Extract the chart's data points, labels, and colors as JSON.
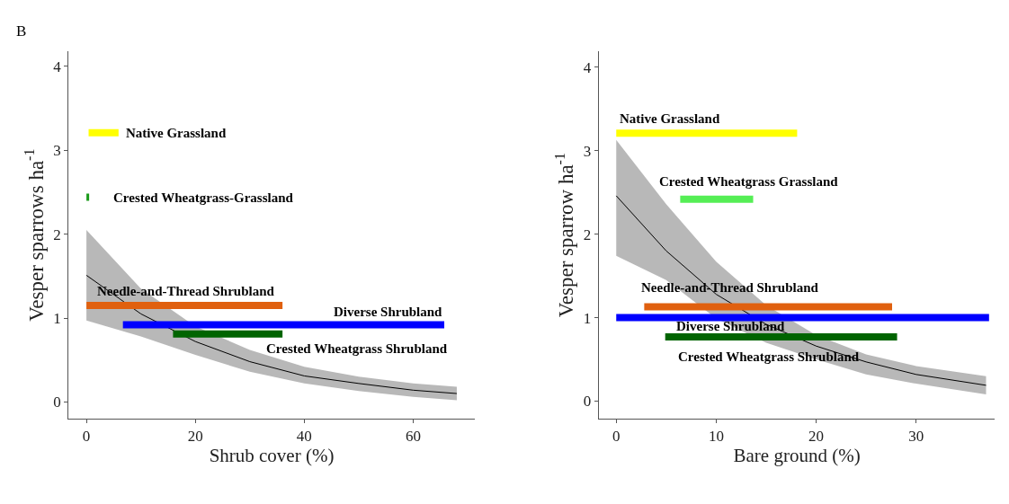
{
  "chart_data": [
    {
      "type": "line",
      "annotations": [
        "B"
      ],
      "xlabel": "Shrub cover (%)",
      "ylabel": "Vesper sparrows ha$^{-1}$",
      "xlim": [
        -3.3,
        71.3
      ],
      "ylim": [
        -0.2,
        4.18
      ],
      "xticks": [
        0,
        20,
        40,
        60
      ],
      "yticks": [
        0,
        1,
        2,
        3,
        4
      ],
      "legend": false,
      "marker": "none",
      "series": [
        {
          "color": "#000000",
          "x": [
            0,
            10,
            20,
            30,
            40,
            50,
            60,
            68
          ],
          "values": [
            1.51,
            1.05,
            0.72,
            0.48,
            0.31,
            0.22,
            0.14,
            0.1
          ],
          "lower": [
            0.97,
            0.78,
            0.56,
            0.36,
            0.22,
            0.13,
            0.06,
            0.02
          ],
          "upper": [
            2.05,
            1.35,
            0.9,
            0.62,
            0.42,
            0.3,
            0.22,
            0.18
          ]
        },
        {
          "name": "Native Grassland",
          "color": "#ffff00",
          "x": [
            0.4,
            5.9
          ],
          "values": [
            3.21,
            3.21
          ]
        },
        {
          "name": "Crested Wheatgrass-Grassland",
          "color": "#1a9a1a",
          "x": [
            0,
            0.5
          ],
          "values": [
            2.44,
            2.44
          ]
        },
        {
          "name": "Needle-and-Thread Shrubland",
          "color": "#e0600f",
          "x": [
            0,
            36
          ],
          "values": [
            1.15,
            1.15
          ]
        },
        {
          "name": "Diverse Shrubland",
          "color": "#0000ff",
          "x": [
            6.7,
            65.7
          ],
          "values": [
            0.92,
            0.92
          ]
        },
        {
          "name": "Crested Wheatgrass Shrubland",
          "color": "#006400",
          "x": [
            15.9,
            36
          ],
          "values": [
            0.81,
            0.81
          ]
        }
      ]
    },
    {
      "type": "line",
      "xlabel": "Bare ground (%)",
      "ylabel": "Vesper sparrow ha$^{-1}$",
      "xlim": [
        -1.76,
        37.9
      ],
      "ylim": [
        -0.21,
        4.19
      ],
      "xticks": [
        0,
        10,
        20,
        30
      ],
      "yticks": [
        0,
        1,
        2,
        3,
        4
      ],
      "legend": false,
      "marker": "none",
      "series": [
        {
          "color": "#000000",
          "x": [
            0,
            5,
            10,
            15,
            20,
            25,
            30,
            37
          ],
          "values": [
            2.46,
            1.8,
            1.28,
            0.92,
            0.66,
            0.47,
            0.32,
            0.19
          ],
          "lower": [
            1.74,
            1.45,
            0.99,
            0.7,
            0.5,
            0.32,
            0.21,
            0.08
          ],
          "upper": [
            3.13,
            2.36,
            1.67,
            1.15,
            0.79,
            0.56,
            0.42,
            0.3
          ]
        },
        {
          "name": "Native Grassland",
          "color": "#ffff00",
          "x": [
            0,
            18.1
          ],
          "values": [
            3.21,
            3.21
          ]
        },
        {
          "name": "Crested Wheatgrass Grassland",
          "color": "#55ee55",
          "x": [
            6.4,
            13.7
          ],
          "values": [
            2.42,
            2.42
          ]
        },
        {
          "name": "Needle-and-Thread Shrubland",
          "color": "#e0600f",
          "x": [
            2.8,
            27.6
          ],
          "values": [
            1.13,
            1.13
          ]
        },
        {
          "name": "Diverse Shrubland",
          "color": "#0000ff",
          "x": [
            0,
            37.3
          ],
          "values": [
            1.0,
            1.0
          ]
        },
        {
          "name": "Crested Wheatgrass Shrubland",
          "color": "#006400",
          "x": [
            4.9,
            28.1
          ],
          "values": [
            0.77,
            0.77
          ]
        }
      ]
    }
  ]
}
